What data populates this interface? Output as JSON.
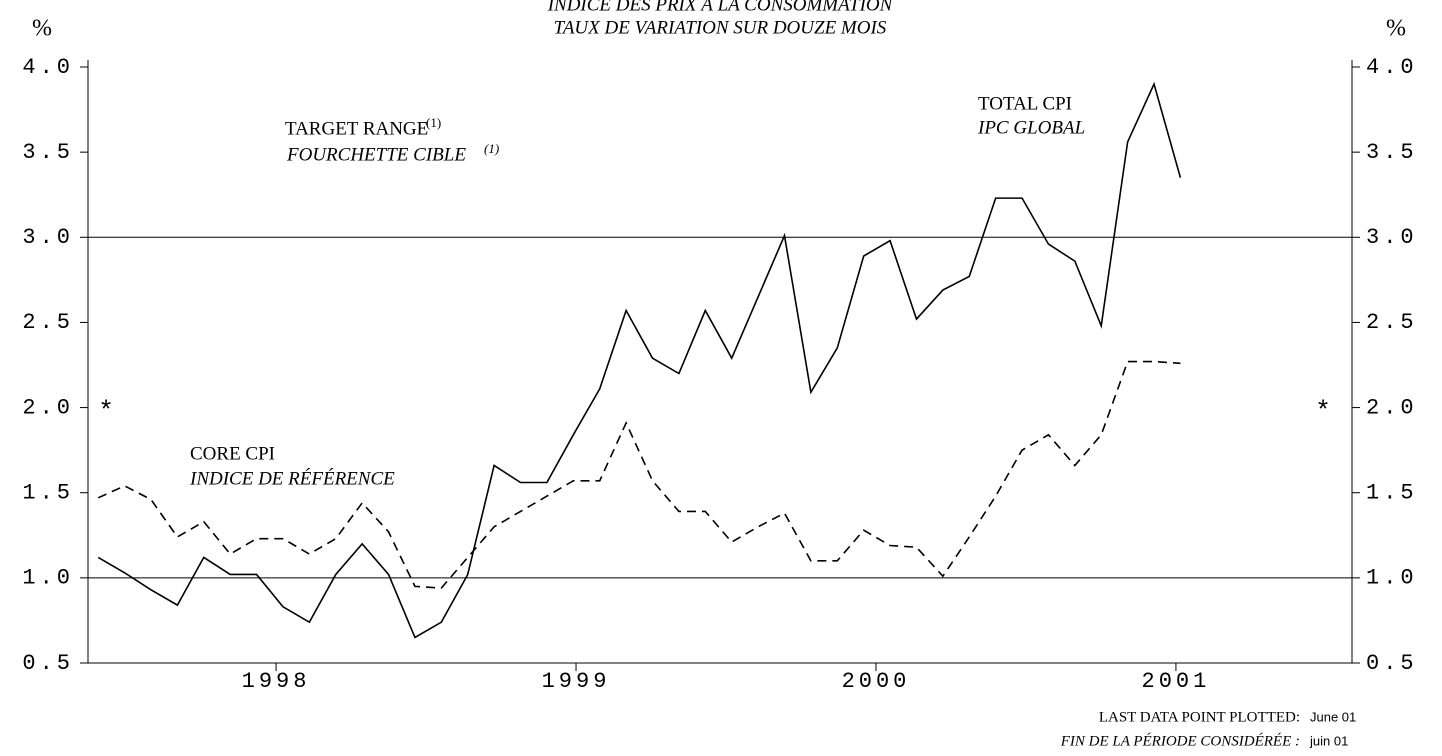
{
  "chart_data": {
    "type": "line",
    "title": "INDICE DES PRIX À LA CONSOMMATION",
    "subtitle": "TAUX DE VARIATION SUR DOUZE MOIS",
    "y_label": "%",
    "y2_label": "%",
    "x": [
      1997.407,
      1997.495,
      1997.583,
      1997.671,
      1997.759,
      1997.847,
      1997.935,
      1998.023,
      1998.111,
      1998.199,
      1998.287,
      1998.375,
      1998.463,
      1998.551,
      1998.639,
      1998.727,
      1998.815,
      1998.903,
      1998.991,
      1999.079,
      1999.167,
      1999.255,
      1999.343,
      1999.431,
      1999.519,
      1999.607,
      1999.695,
      1999.783,
      1999.871,
      1999.959,
      2000.047,
      2000.135,
      2000.223,
      2000.311,
      2000.399,
      2000.487,
      2000.575,
      2000.663,
      2000.751,
      2000.839,
      2000.927,
      2001.015
    ],
    "series": [
      {
        "name": "TOTAL CPI",
        "name_fr": "IPC GLOBAL",
        "color": "#000000",
        "dash": false,
        "values": [
          1.12,
          1.03,
          0.93,
          0.84,
          1.12,
          1.02,
          1.02,
          0.83,
          0.74,
          1.02,
          1.2,
          1.02,
          0.65,
          0.74,
          1.02,
          1.66,
          1.56,
          1.56,
          1.84,
          2.11,
          2.57,
          2.29,
          2.2,
          2.57,
          2.29,
          2.65,
          3.01,
          2.09,
          2.35,
          2.89,
          2.98,
          2.52,
          2.69,
          2.77,
          3.23,
          3.23,
          2.96,
          2.86,
          2.48,
          3.56,
          3.9,
          3.35
        ]
      },
      {
        "name": "CORE CPI",
        "name_fr": "INDICE DE RÉFÉRENCE",
        "color": "#000000",
        "dash": true,
        "values": [
          1.47,
          1.54,
          1.46,
          1.24,
          1.33,
          1.14,
          1.23,
          1.23,
          1.14,
          1.23,
          1.44,
          1.27,
          0.95,
          0.94,
          1.12,
          1.3,
          1.39,
          1.48,
          1.57,
          1.57,
          1.91,
          1.57,
          1.39,
          1.39,
          1.21,
          1.3,
          1.38,
          1.1,
          1.1,
          1.28,
          1.19,
          1.18,
          1.01,
          1.24,
          1.48,
          1.75,
          1.84,
          1.66,
          1.84,
          2.27,
          2.27,
          2.26
        ]
      }
    ],
    "target_range": [
      1.0,
      3.0
    ],
    "target_label": "TARGET RANGE",
    "target_label_fr": "FOURCHETTE CIBLE",
    "footnote_ref": "(1)",
    "asterisk": "*",
    "asterisk_value": 2.0,
    "xlim": [
      1997.373,
      2001.587
    ],
    "xticks": [
      1998,
      1999,
      2000,
      2001
    ],
    "ylim": [
      0.5,
      4.0
    ],
    "yticks": [
      {
        "value": 0.5,
        "label": "0.5"
      },
      {
        "value": 1.0,
        "label": "1.0"
      },
      {
        "value": 1.5,
        "label": "1.5"
      },
      {
        "value": 2.0,
        "label": "2.0"
      },
      {
        "value": 2.5,
        "label": "2.5"
      },
      {
        "value": 3.0,
        "label": "3.0"
      },
      {
        "value": 3.5,
        "label": "3.5"
      },
      {
        "value": 4.0,
        "label": "4.0"
      }
    ],
    "last_point_label": "LAST DATA POINT PLOTTED:",
    "last_point_label_fr": "FIN DE LA PÉRIODE CONSIDÉRÉE :",
    "last_point": "June 01",
    "last_point_fr": "juin 01"
  }
}
